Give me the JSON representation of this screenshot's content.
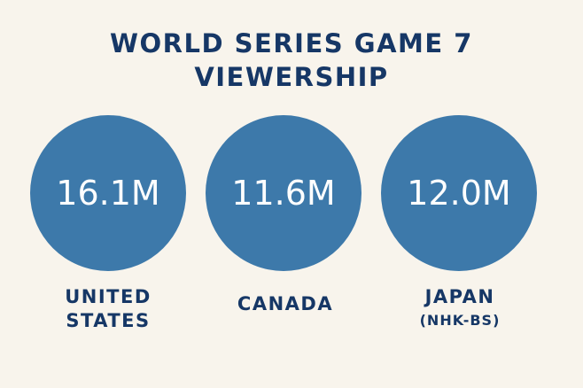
{
  "chart_data": {
    "type": "bubble",
    "title_lines": [
      "WORLD SERIES GAME 7",
      "VIEWERSHIP"
    ],
    "categories": [
      {
        "lines": [
          "UNITED",
          "STATES"
        ],
        "sub": ""
      },
      {
        "lines": [
          "CANADA"
        ],
        "sub": ""
      },
      {
        "lines": [
          "JAPAN"
        ],
        "sub": "(NHK-BS)"
      }
    ],
    "values": [
      16.1,
      11.6,
      12.0
    ],
    "value_labels": [
      "16.1M",
      "11.6M",
      "12.0M"
    ],
    "bubble_color": "#3d79aa",
    "text_color": "#163766",
    "background": "#f8f4ec"
  }
}
